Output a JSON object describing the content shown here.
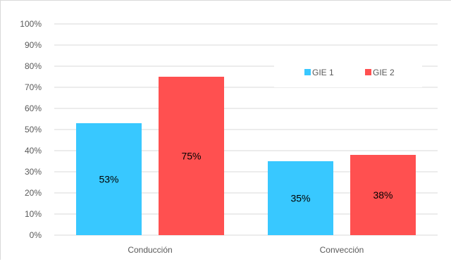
{
  "chart_data": {
    "type": "bar",
    "title": "",
    "xlabel": "",
    "ylabel": "",
    "categories": [
      "Conducción",
      "Convección"
    ],
    "series": [
      {
        "name": "GIE 1",
        "values": [
          53,
          35
        ],
        "labels": [
          "53%",
          "35%"
        ],
        "color": "#38c8ff"
      },
      {
        "name": "GIE 2",
        "values": [
          75,
          38
        ],
        "labels": [
          "75%",
          "38%"
        ],
        "color": "#ff5050"
      }
    ],
    "ylim": [
      0,
      100
    ],
    "ytick_step": 10,
    "ytick_labels": [
      "0%",
      "10%",
      "20%",
      "30%",
      "40%",
      "50%",
      "60%",
      "70%",
      "80%",
      "90%",
      "100%"
    ],
    "grid": true,
    "grid_color": "#d9d9d9",
    "legend_position": "top-right"
  }
}
